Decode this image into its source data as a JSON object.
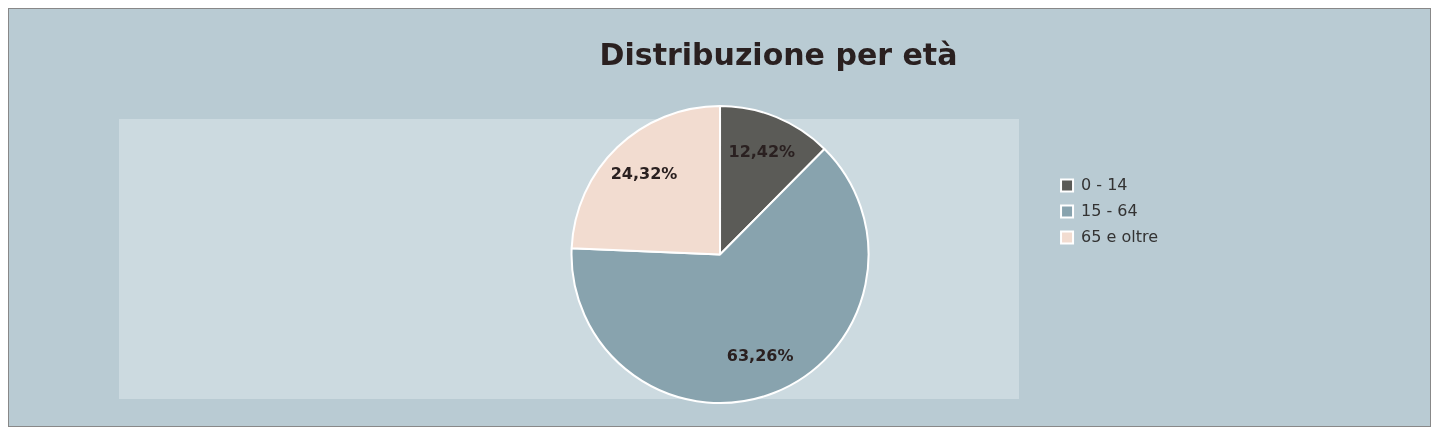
{
  "chart_data": {
    "type": "pie",
    "title": "Distribuzione per età",
    "categories": [
      "0 - 14",
      "15 - 64",
      "65 e oltre"
    ],
    "values": [
      12.42,
      63.26,
      24.32
    ],
    "value_labels": [
      "12,42%",
      "63,26%",
      "24,32%"
    ],
    "colors": [
      "#5b5b57",
      "#88a3ae",
      "#f2dcd0"
    ],
    "legend": "right"
  }
}
